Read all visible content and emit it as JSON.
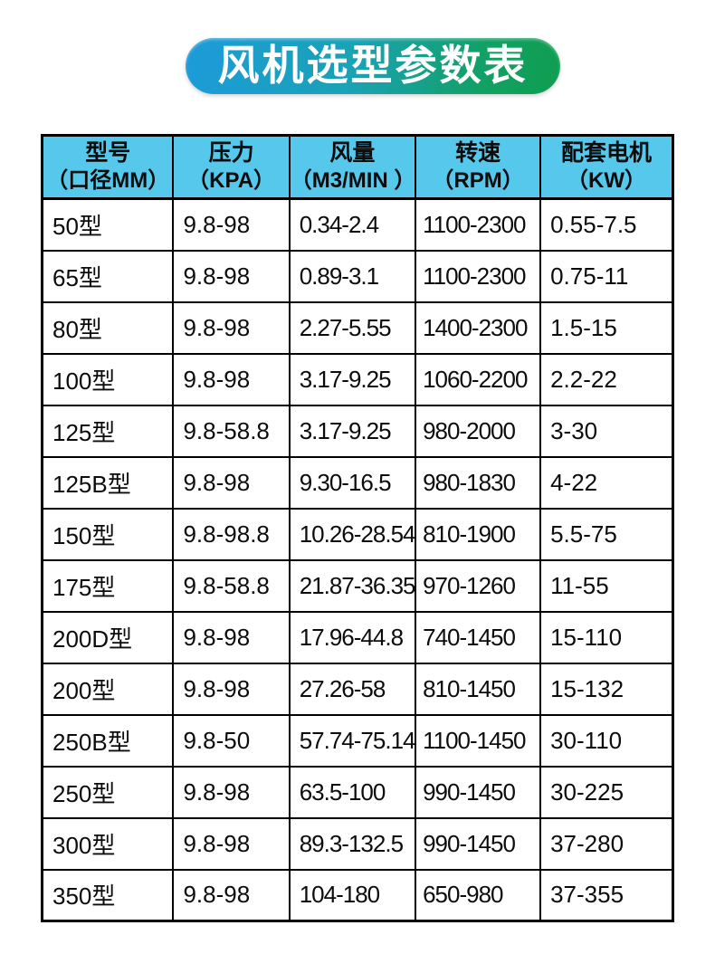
{
  "title": {
    "text": "风机选型参数表",
    "text_color": "#ffffff",
    "gradient_left": "#1c9bd9",
    "gradient_right": "#0f9e50"
  },
  "table_style": {
    "header_bg": "#55c8ec",
    "border_color": "#000000",
    "row_bg": "#ffffff"
  },
  "chart_data": {
    "type": "table",
    "title": "风机选型参数表",
    "columns": [
      {
        "key": "model",
        "title": "型号",
        "unit": "（口径MM）"
      },
      {
        "key": "press",
        "title": "压力",
        "unit": "（KPA）"
      },
      {
        "key": "airflow",
        "title": "风量",
        "unit": "（M3/MIN ）"
      },
      {
        "key": "speed",
        "title": "转速",
        "unit": "（RPM）"
      },
      {
        "key": "motor",
        "title": "配套电机",
        "unit": "（KW）"
      }
    ],
    "rows": [
      [
        "50型",
        "9.8-98",
        "0.34-2.4",
        "1100-2300",
        "0.55-7.5"
      ],
      [
        "65型",
        "9.8-98",
        "0.89-3.1",
        "1100-2300",
        "0.75-11"
      ],
      [
        "80型",
        "9.8-98",
        "2.27-5.55",
        "1400-2300",
        "1.5-15"
      ],
      [
        "100型",
        "9.8-98",
        "3.17-9.25",
        "1060-2200",
        "2.2-22"
      ],
      [
        "125型",
        "9.8-58.8",
        "3.17-9.25",
        "980-2000",
        "3-30"
      ],
      [
        "125B型",
        "9.8-98",
        "9.30-16.5",
        "980-1830",
        "4-22"
      ],
      [
        "150型",
        "9.8-98.8",
        "10.26-28.54",
        "810-1900",
        "5.5-75"
      ],
      [
        "175型",
        "9.8-58.8",
        "21.87-36.35",
        "970-1260",
        "11-55"
      ],
      [
        "200D型",
        "9.8-98",
        "17.96-44.8",
        "740-1450",
        "15-110"
      ],
      [
        "200型",
        "9.8-98",
        "27.26-58",
        "810-1450",
        "15-132"
      ],
      [
        "250B型",
        "9.8-50",
        "57.74-75.14",
        "1100-1450",
        "30-110"
      ],
      [
        "250型",
        "9.8-98",
        "63.5-100",
        "990-1450",
        "30-225"
      ],
      [
        "300型",
        "9.8-98",
        "89.3-132.5",
        "990-1450",
        "37-280"
      ],
      [
        "350型",
        "9.8-98",
        "104-180",
        "650-980",
        "37-355"
      ]
    ]
  }
}
